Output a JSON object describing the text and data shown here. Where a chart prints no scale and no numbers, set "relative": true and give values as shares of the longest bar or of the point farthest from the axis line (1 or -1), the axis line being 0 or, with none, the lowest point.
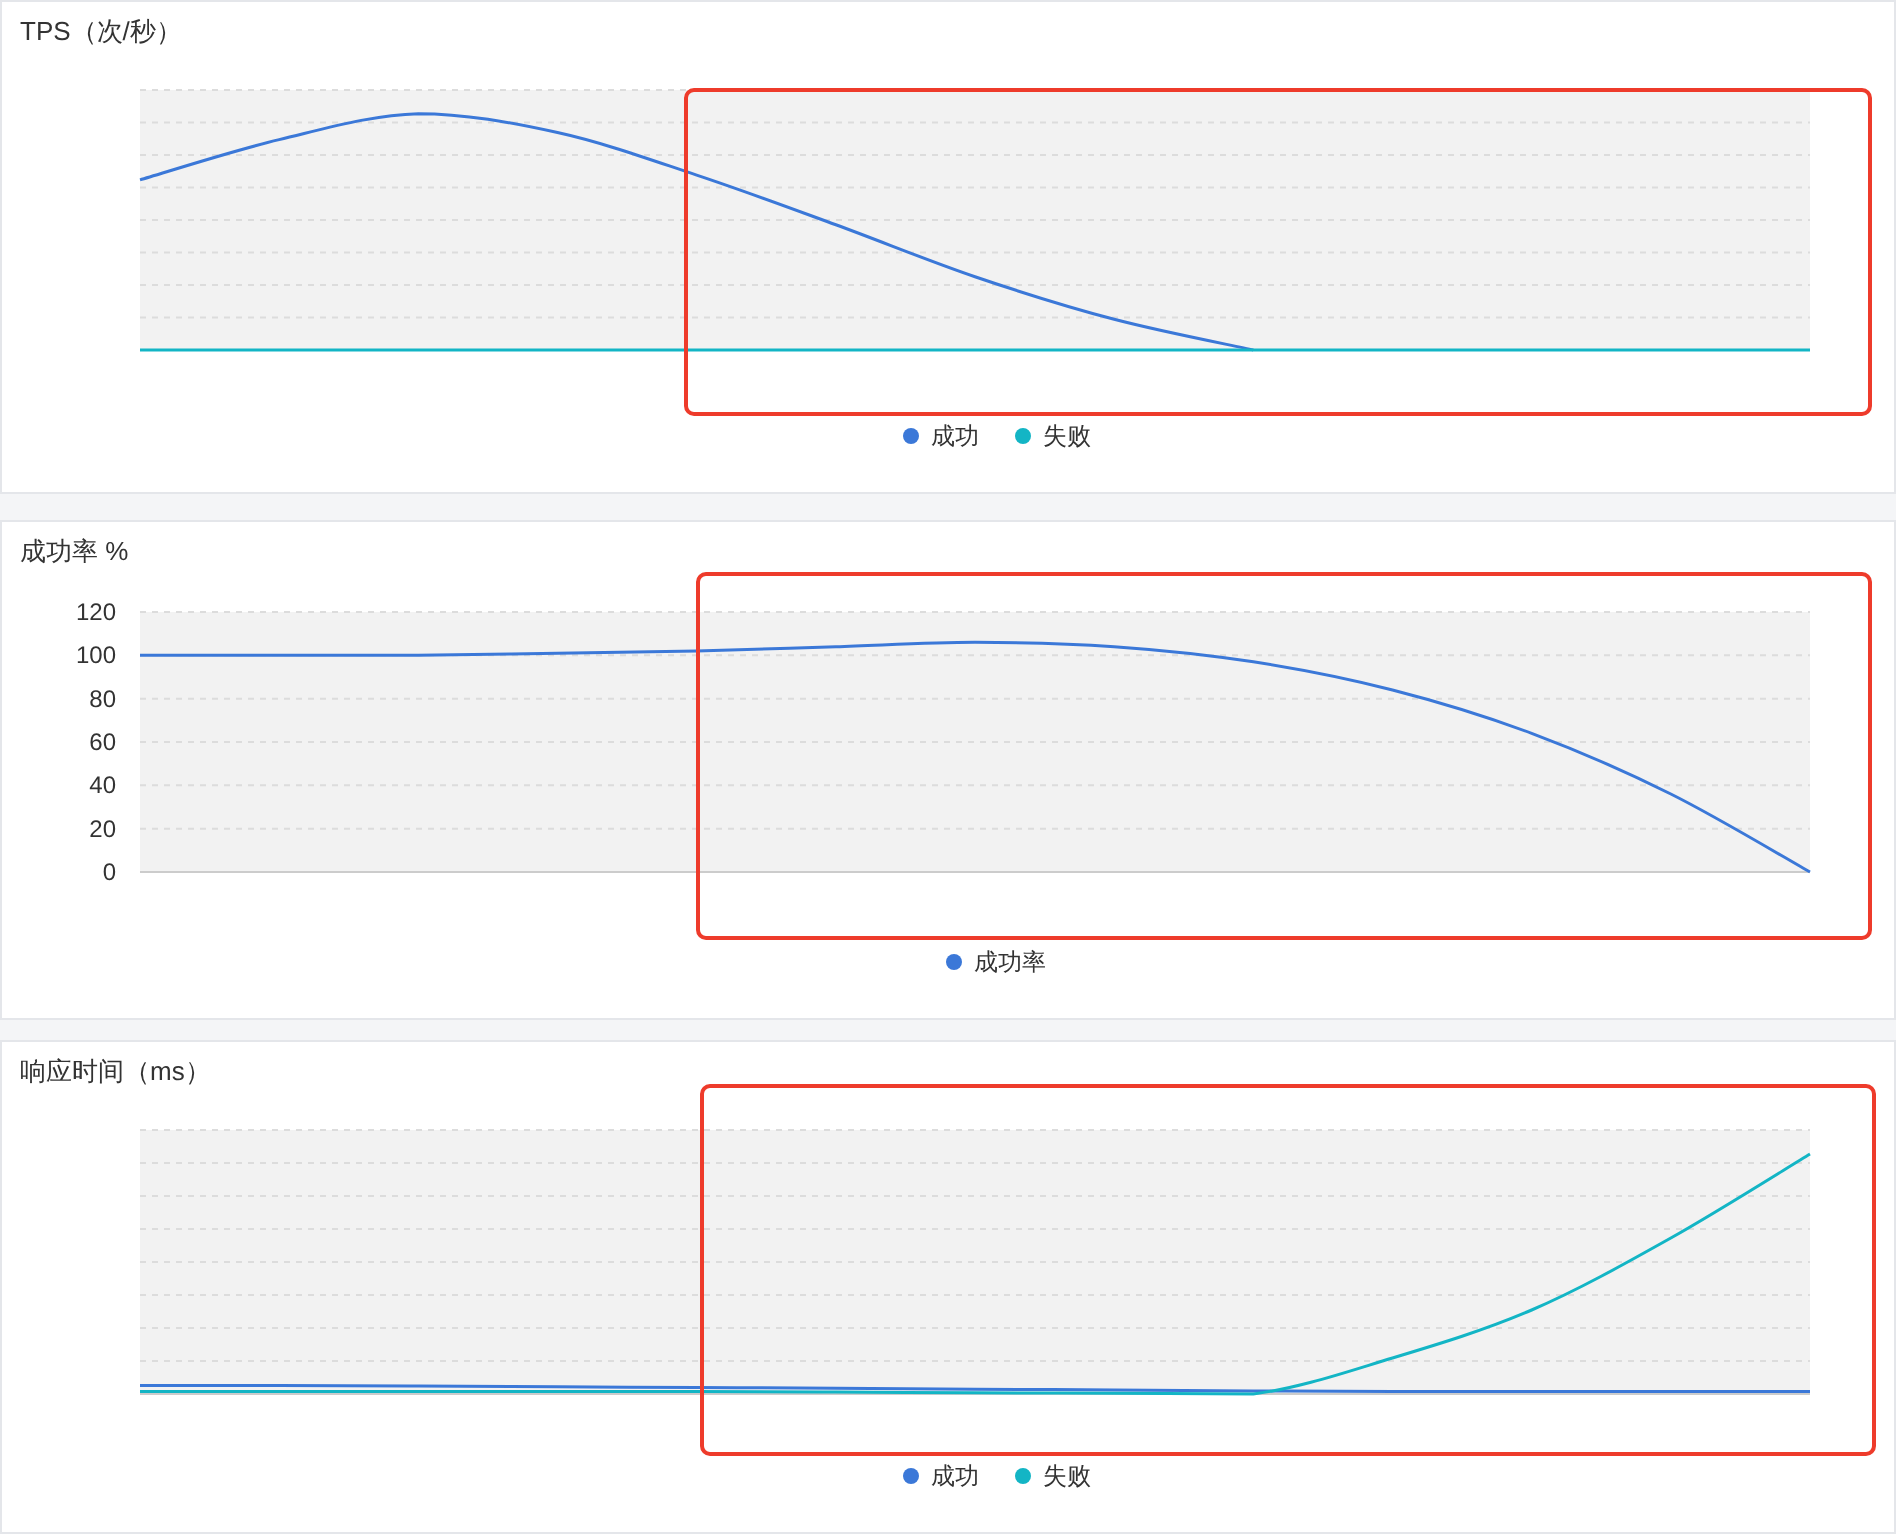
{
  "chart_data": [
    {
      "type": "line",
      "title": "TPS（次/秒）",
      "relative": true,
      "grid": "y",
      "legend": "bottom",
      "tick_labels": false,
      "line_style": "solid",
      "categories": [
        null,
        null,
        null,
        null,
        null,
        null,
        null,
        null,
        null,
        null,
        null,
        null,
        null
      ],
      "series": [
        {
          "name": "成功",
          "color": "#3b78d8",
          "values": [
            0.72,
            0.89,
            1,
            0.92,
            0.74,
            0.53,
            0.31,
            0.13,
            0,
            null,
            null,
            null,
            null
          ]
        },
        {
          "name": "失败",
          "color": "#13b5c5",
          "values": [
            0,
            0,
            0,
            0,
            0,
            0,
            0,
            0,
            0,
            0,
            0,
            0,
            0
          ]
        }
      ]
    },
    {
      "type": "line",
      "title": "成功率 %",
      "grid": "y",
      "legend": "bottom",
      "tick_labels": "y",
      "line_style": "solid",
      "ylim": [
        0,
        120
      ],
      "yticks": [
        0,
        20,
        40,
        60,
        80,
        100,
        120
      ],
      "categories": [
        null,
        null,
        null,
        null,
        null,
        null,
        null,
        null,
        null,
        null,
        null,
        null,
        null
      ],
      "series": [
        {
          "name": "成功率",
          "color": "#3b78d8",
          "values": [
            100,
            100,
            100,
            101,
            102,
            104,
            106,
            104,
            97,
            84,
            64,
            36,
            0
          ]
        }
      ]
    },
    {
      "type": "line",
      "title": "响应时间（ms）",
      "relative": true,
      "grid": "y",
      "legend": "bottom",
      "tick_labels": false,
      "line_style": "solid",
      "categories": [
        null,
        null,
        null,
        null,
        null,
        null,
        null,
        null,
        null,
        null,
        null,
        null,
        null
      ],
      "series": [
        {
          "name": "成功",
          "color": "#3b78d8",
          "values": [
            0.035,
            0.035,
            0.033,
            0.03,
            0.027,
            0.024,
            0.02,
            0.017,
            0.013,
            0.01,
            0.01,
            0.01,
            0.01
          ]
        },
        {
          "name": "失败",
          "color": "#13b5c5",
          "values": [
            0.01,
            0.01,
            0.01,
            0.01,
            0.01,
            0.008,
            0.005,
            0.003,
            0,
            0.15,
            0.35,
            0.65,
            1
          ]
        }
      ]
    }
  ]
}
